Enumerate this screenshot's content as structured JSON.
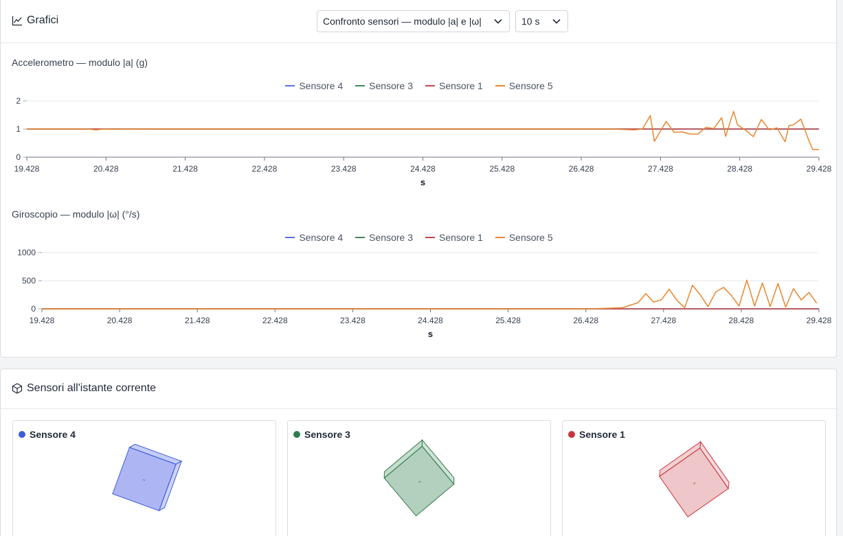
{
  "charts_panel": {
    "title": "Grafici",
    "mode_select": "Confronto sensori — modulo |a| e |ω|",
    "window_select": "10 s"
  },
  "legend": [
    {
      "name": "Sensore 4",
      "color": "#5b6ee8"
    },
    {
      "name": "Sensore 3",
      "color": "#3f8a5b"
    },
    {
      "name": "Sensore 1",
      "color": "#c9434b"
    },
    {
      "name": "Sensore 5",
      "color": "#e8852c"
    }
  ],
  "chart_data": [
    {
      "type": "line",
      "title": "Accelerometro — modulo |a| (g)",
      "xlabel": "s",
      "ylabel": "",
      "xlim": [
        19.428,
        29.428
      ],
      "ylim": [
        0,
        2
      ],
      "xticks": [
        "19.428",
        "20.428",
        "21.428",
        "22.428",
        "23.428",
        "24.428",
        "25.428",
        "26.428",
        "27.428",
        "28.428",
        "29.428"
      ],
      "yticks": [
        0,
        1,
        2
      ],
      "grid": "horizontal",
      "legend": "top-center",
      "series": [
        {
          "name": "Sensore 4",
          "x": [
            19.428,
            29.428
          ],
          "y": [
            1.0,
            1.0
          ]
        },
        {
          "name": "Sensore 3",
          "x": [
            19.428,
            29.428
          ],
          "y": [
            1.0,
            1.0
          ]
        },
        {
          "name": "Sensore 1",
          "x": [
            19.428,
            29.428
          ],
          "y": [
            1.0,
            1.0
          ]
        },
        {
          "name": "Sensore 5",
          "x": [
            19.428,
            20.2,
            20.3,
            20.4,
            20.5,
            21.0,
            22.0,
            23.0,
            24.0,
            25.0,
            26.0,
            26.8,
            27.1,
            27.2,
            27.3,
            27.35,
            27.5,
            27.6,
            27.7,
            27.8,
            27.9,
            28.0,
            28.1,
            28.2,
            28.25,
            28.35,
            28.4,
            28.5,
            28.6,
            28.7,
            28.8,
            28.9,
            29.0,
            29.05,
            29.1,
            29.2,
            29.3,
            29.35,
            29.428
          ],
          "y": [
            1.0,
            1.0,
            0.97,
            1.0,
            0.99,
            1.0,
            1.0,
            1.0,
            1.0,
            1.0,
            1.0,
            1.0,
            0.97,
            1.0,
            1.48,
            0.56,
            1.27,
            0.88,
            0.9,
            0.82,
            0.82,
            1.06,
            1.02,
            1.4,
            0.74,
            1.63,
            1.15,
            0.96,
            0.73,
            1.34,
            0.97,
            1.04,
            0.55,
            1.13,
            1.14,
            1.35,
            0.6,
            0.27,
            0.27
          ]
        }
      ]
    },
    {
      "type": "line",
      "title": "Giroscopio — modulo |ω| (°/s)",
      "xlabel": "s",
      "ylabel": "",
      "xlim": [
        19.428,
        29.428
      ],
      "ylim": [
        0,
        1000
      ],
      "xticks": [
        "19.428",
        "20.428",
        "21.428",
        "22.428",
        "23.428",
        "24.428",
        "25.428",
        "26.428",
        "27.428",
        "28.428",
        "29.428"
      ],
      "yticks": [
        0,
        500,
        1000
      ],
      "grid": "horizontal",
      "legend": "top-center",
      "series": [
        {
          "name": "Sensore 4",
          "x": [
            19.428,
            29.428
          ],
          "y": [
            0,
            0
          ]
        },
        {
          "name": "Sensore 3",
          "x": [
            19.428,
            29.428
          ],
          "y": [
            0,
            0
          ]
        },
        {
          "name": "Sensore 1",
          "x": [
            19.428,
            29.428
          ],
          "y": [
            0,
            0
          ]
        },
        {
          "name": "Sensore 5",
          "x": [
            19.428,
            26.5,
            26.9,
            27.1,
            27.2,
            27.3,
            27.4,
            27.5,
            27.6,
            27.7,
            27.8,
            27.9,
            28.0,
            28.1,
            28.2,
            28.3,
            28.4,
            28.5,
            28.6,
            28.7,
            28.8,
            28.9,
            29.0,
            29.1,
            29.2,
            29.3,
            29.4
          ],
          "y": [
            0,
            0,
            20,
            110,
            270,
            120,
            160,
            350,
            150,
            20,
            420,
            250,
            40,
            300,
            380,
            240,
            50,
            510,
            50,
            460,
            40,
            450,
            30,
            360,
            160,
            290,
            100
          ]
        }
      ]
    }
  ],
  "sensors_panel": {
    "title": "Sensori all'istante corrente",
    "cards": [
      {
        "name": "Sensore 4",
        "color": "#3b5bdb"
      },
      {
        "name": "Sensore 3",
        "color": "#2f7a4c"
      },
      {
        "name": "Sensore 1",
        "color": "#c9343c"
      }
    ]
  }
}
